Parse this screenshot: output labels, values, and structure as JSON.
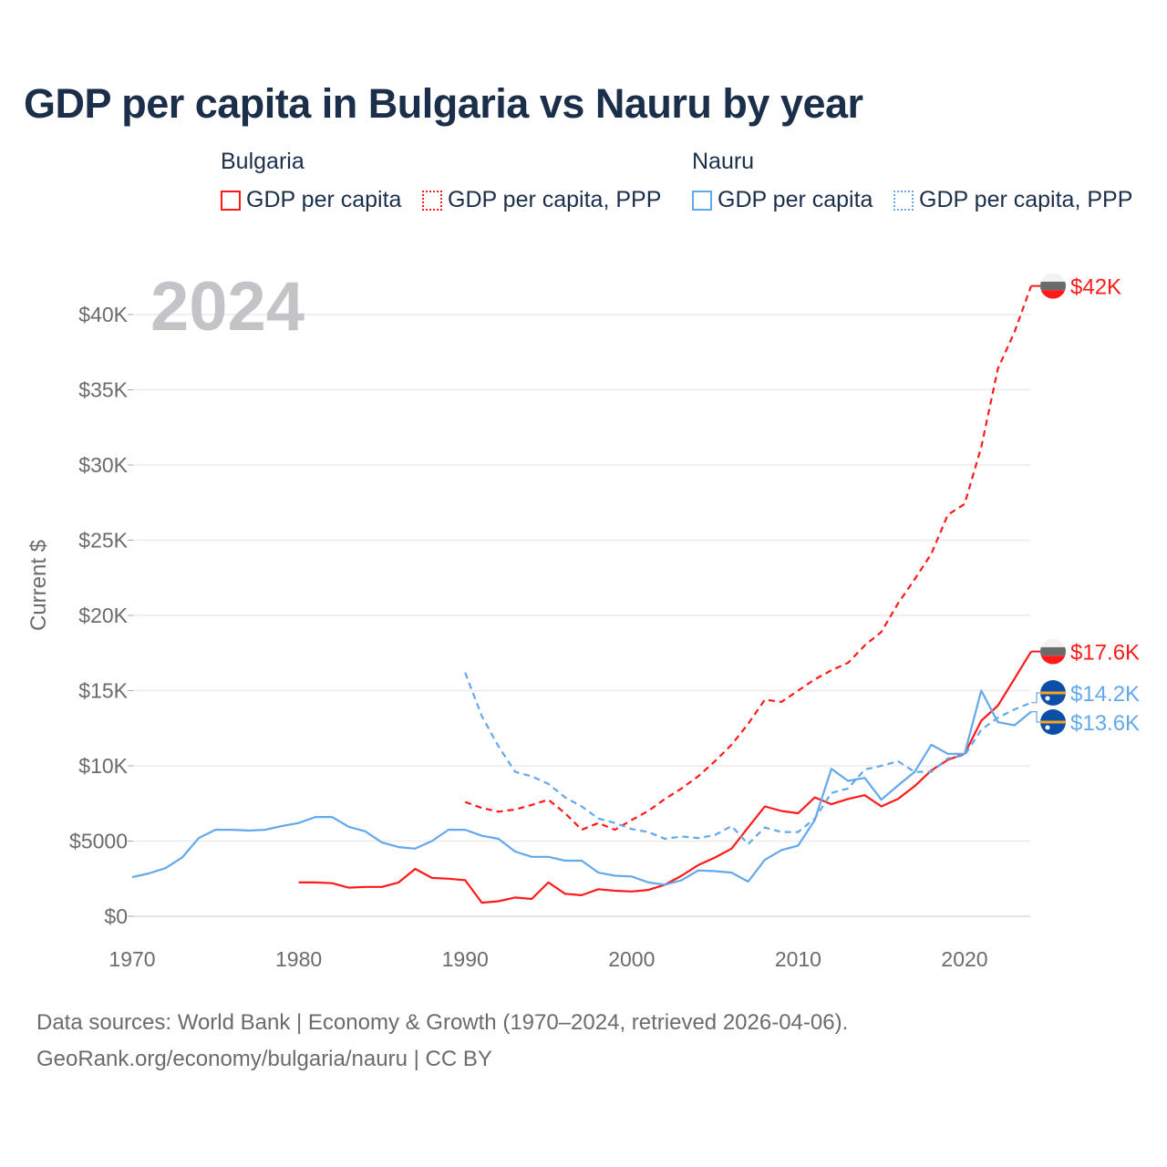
{
  "chart_data": {
    "type": "line",
    "title": "GDP per capita in Bulgaria vs Nauru by year",
    "year_overlay": "2024",
    "ylabel": "Current $",
    "xlabel": "",
    "xlim": [
      1970,
      2024
    ],
    "ylim": [
      0,
      43000
    ],
    "x_ticks": [
      1970,
      1980,
      1990,
      2000,
      2010,
      2020
    ],
    "x_tick_labels": [
      "1970",
      "1980",
      "1990",
      "2000",
      "2010",
      "2020"
    ],
    "y_ticks": [
      0,
      5000,
      10000,
      15000,
      20000,
      25000,
      30000,
      35000,
      40000
    ],
    "y_tick_labels": [
      "$0",
      "$5000",
      "$10K",
      "$15K",
      "$20K",
      "$25K",
      "$30K",
      "$35K",
      "$40K"
    ],
    "grid": true,
    "legend": {
      "placement": "top",
      "groups": [
        {
          "name": "Bulgaria",
          "items": [
            "GDP per capita",
            "GDP per capita, PPP"
          ]
        },
        {
          "name": "Nauru",
          "items": [
            "GDP per capita",
            "GDP per capita, PPP"
          ]
        }
      ]
    },
    "series": [
      {
        "name": "Bulgaria GDP per capita",
        "country": "Bulgaria",
        "color": "#ff1a1a",
        "dashed": false,
        "start": 1980,
        "end_label": "$17.6K",
        "values": [
          2.25,
          2.25,
          2.2,
          1.9,
          1.95,
          1.95,
          2.25,
          3.15,
          2.55,
          2.5,
          2.4,
          0.9,
          1.0,
          1.25,
          1.15,
          2.25,
          1.5,
          1.4,
          1.8,
          1.7,
          1.65,
          1.75,
          2.1,
          2.7,
          3.4,
          3.9,
          4.5,
          5.9,
          7.3,
          7.0,
          6.85,
          7.9,
          7.45,
          7.8,
          8.05,
          7.3,
          7.8,
          8.65,
          9.7,
          10.4,
          10.8,
          13.0,
          14.0,
          15.8,
          17.6
        ]
      },
      {
        "name": "Bulgaria GDP per capita, PPP",
        "country": "Bulgaria",
        "color": "#ff1a1a",
        "dashed": true,
        "start": 1990,
        "end_label": "$42K",
        "values": [
          7.6,
          7.2,
          6.95,
          7.1,
          7.4,
          7.75,
          6.85,
          5.75,
          6.2,
          5.75,
          6.4,
          7.0,
          7.8,
          8.5,
          9.3,
          10.3,
          11.4,
          12.8,
          14.4,
          14.25,
          15.0,
          15.75,
          16.35,
          16.85,
          18.0,
          18.9,
          20.8,
          22.4,
          24.1,
          26.7,
          27.4,
          31.2,
          36.4,
          38.85,
          41.9
        ]
      },
      {
        "name": "Nauru GDP per capita",
        "country": "Nauru",
        "color": "#64a8ec",
        "dashed": false,
        "start": 1970,
        "end_label": "$13.6K",
        "values": [
          2.6,
          2.85,
          3.2,
          3.9,
          5.2,
          5.75,
          5.75,
          5.7,
          5.75,
          6.0,
          6.2,
          6.6,
          6.6,
          5.95,
          5.65,
          4.9,
          4.6,
          4.5,
          5.0,
          5.75,
          5.75,
          5.35,
          5.15,
          4.3,
          3.95,
          3.95,
          3.7,
          3.7,
          2.9,
          2.7,
          2.65,
          2.25,
          2.1,
          2.4,
          3.05,
          3.0,
          2.9,
          2.3,
          3.75,
          4.4,
          4.7,
          6.4,
          9.8,
          9.0,
          9.2,
          7.75,
          8.7,
          9.6,
          11.4,
          10.8,
          10.8,
          15.0,
          12.9,
          12.7,
          13.6
        ]
      },
      {
        "name": "Nauru GDP per capita, PPP",
        "country": "Nauru",
        "color": "#64a8ec",
        "dashed": true,
        "start": 1990,
        "end_label": "$14.2K",
        "values": [
          16.2,
          13.3,
          11.3,
          9.6,
          9.3,
          8.8,
          7.9,
          7.3,
          6.5,
          6.2,
          5.8,
          5.6,
          5.15,
          5.3,
          5.2,
          5.4,
          6.0,
          4.8,
          5.9,
          5.6,
          5.6,
          6.5,
          8.2,
          8.5,
          9.75,
          10.0,
          10.3,
          9.6,
          9.6,
          10.5,
          10.7,
          12.4,
          13.2,
          13.75,
          14.2
        ]
      }
    ],
    "value_units": "thousands of current US$"
  },
  "footer": {
    "line1": "Data sources: World Bank | Economy & Growth (1970–2024, retrieved 2026-04-06).",
    "line2": "GeoRank.org/economy/bulgaria/nauru | CC BY"
  }
}
